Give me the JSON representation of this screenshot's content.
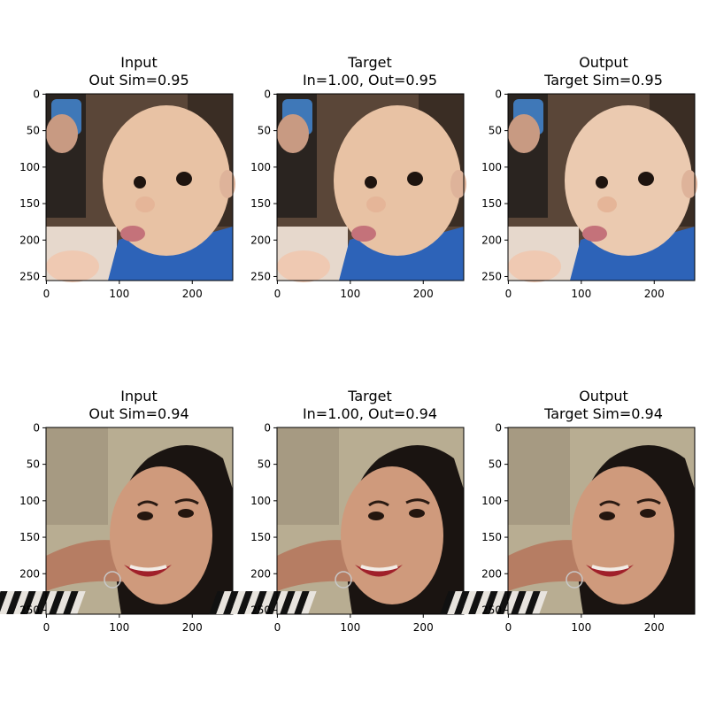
{
  "rows": [
    {
      "panels": [
        {
          "title_line1": "Input",
          "title_line2": "Out Sim=0.95",
          "image": "baby-input"
        },
        {
          "title_line1": "Target",
          "title_line2": "In=1.00, Out=0.95",
          "image": "baby-target"
        },
        {
          "title_line1": "Output",
          "title_line2": "Target Sim=0.95",
          "image": "baby-output"
        }
      ]
    },
    {
      "panels": [
        {
          "title_line1": "Input",
          "title_line2": "Out Sim=0.94",
          "image": "woman-input"
        },
        {
          "title_line1": "Target",
          "title_line2": "In=1.00, Out=0.94",
          "image": "woman-target"
        },
        {
          "title_line1": "Output",
          "title_line2": "Target Sim=0.94",
          "image": "woman-output"
        }
      ]
    }
  ],
  "axes": {
    "y_ticks": [
      0,
      50,
      100,
      150,
      200,
      250
    ],
    "x_ticks": [
      0,
      100,
      200
    ],
    "extent": 256
  },
  "colors": {
    "baby_bg": "#5a4638",
    "baby_skin": "#e8c2a4",
    "baby_shirt": "#2d63b8",
    "woman_bg": "#b8ad92",
    "woman_skin": "#cf9a7c",
    "woman_hair": "#1a1411",
    "lips": "#a0202a"
  }
}
